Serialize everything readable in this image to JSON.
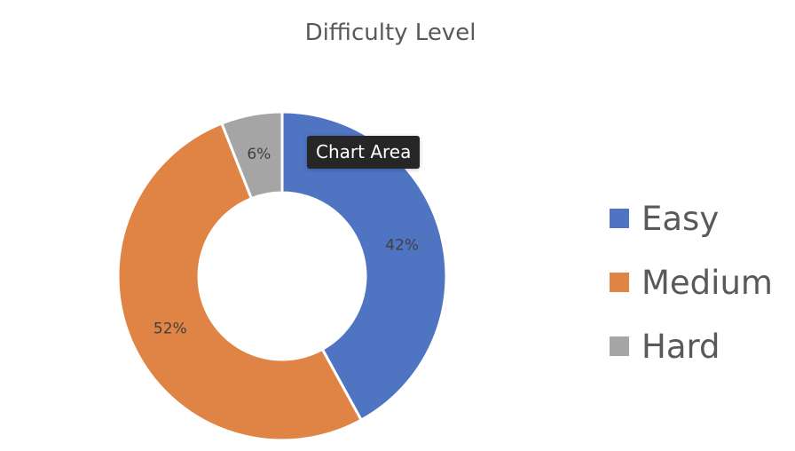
{
  "chart_data": {
    "type": "pie",
    "variant": "doughnut",
    "title": "Difficulty Level",
    "categories": [
      "Easy",
      "Medium",
      "Hard"
    ],
    "values": [
      42,
      52,
      6
    ],
    "labels": [
      "42%",
      "52%",
      "6%"
    ],
    "colors": [
      "#4f74c2",
      "#df8444",
      "#a5a5a5"
    ],
    "legend": {
      "position": "right"
    }
  },
  "tooltip": {
    "text": "Chart Area"
  }
}
